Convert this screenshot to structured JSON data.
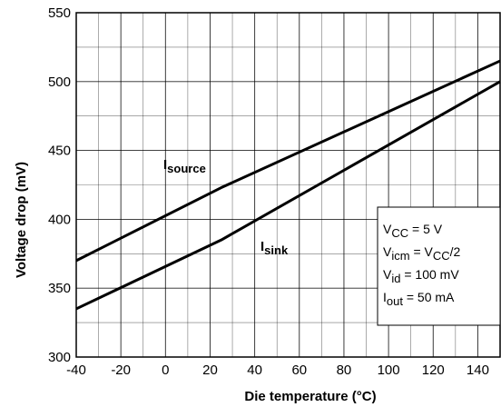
{
  "chart_data": {
    "type": "line",
    "title": "",
    "xlabel": "Die  temperature (°C)",
    "ylabel": "Voltage drop (mV)",
    "xlim": [
      -40,
      150
    ],
    "ylim": [
      300,
      550
    ],
    "xticks": [
      -40,
      -20,
      0,
      20,
      40,
      60,
      80,
      100,
      120,
      140
    ],
    "yticks": [
      300,
      350,
      400,
      450,
      500,
      550
    ],
    "x_minor_step": 10,
    "y_minor_step": 25,
    "grid": true,
    "series": [
      {
        "name_main": "I",
        "name_sub": "source",
        "x": [
          -40,
          25,
          150
        ],
        "y": [
          370,
          423,
          515
        ]
      },
      {
        "name_main": "I",
        "name_sub": "sink",
        "x": [
          -40,
          25,
          150
        ],
        "y": [
          335,
          385,
          500
        ]
      }
    ],
    "annotations": [
      [
        {
          "t": "V"
        },
        {
          "t": "CC",
          "sub": true
        },
        {
          "t": " = 5 V"
        }
      ],
      [
        {
          "t": "V"
        },
        {
          "t": "icm",
          "sub": true
        },
        {
          "t": " = V"
        },
        {
          "t": "CC",
          "sub": true
        },
        {
          "t": "/2"
        }
      ],
      [
        {
          "t": "V"
        },
        {
          "t": "id",
          "sub": true
        },
        {
          "t": " = 100 mV"
        }
      ],
      [
        {
          "t": "I"
        },
        {
          "t": "out",
          "sub": true
        },
        {
          "t": " = 50 mA"
        }
      ]
    ]
  }
}
